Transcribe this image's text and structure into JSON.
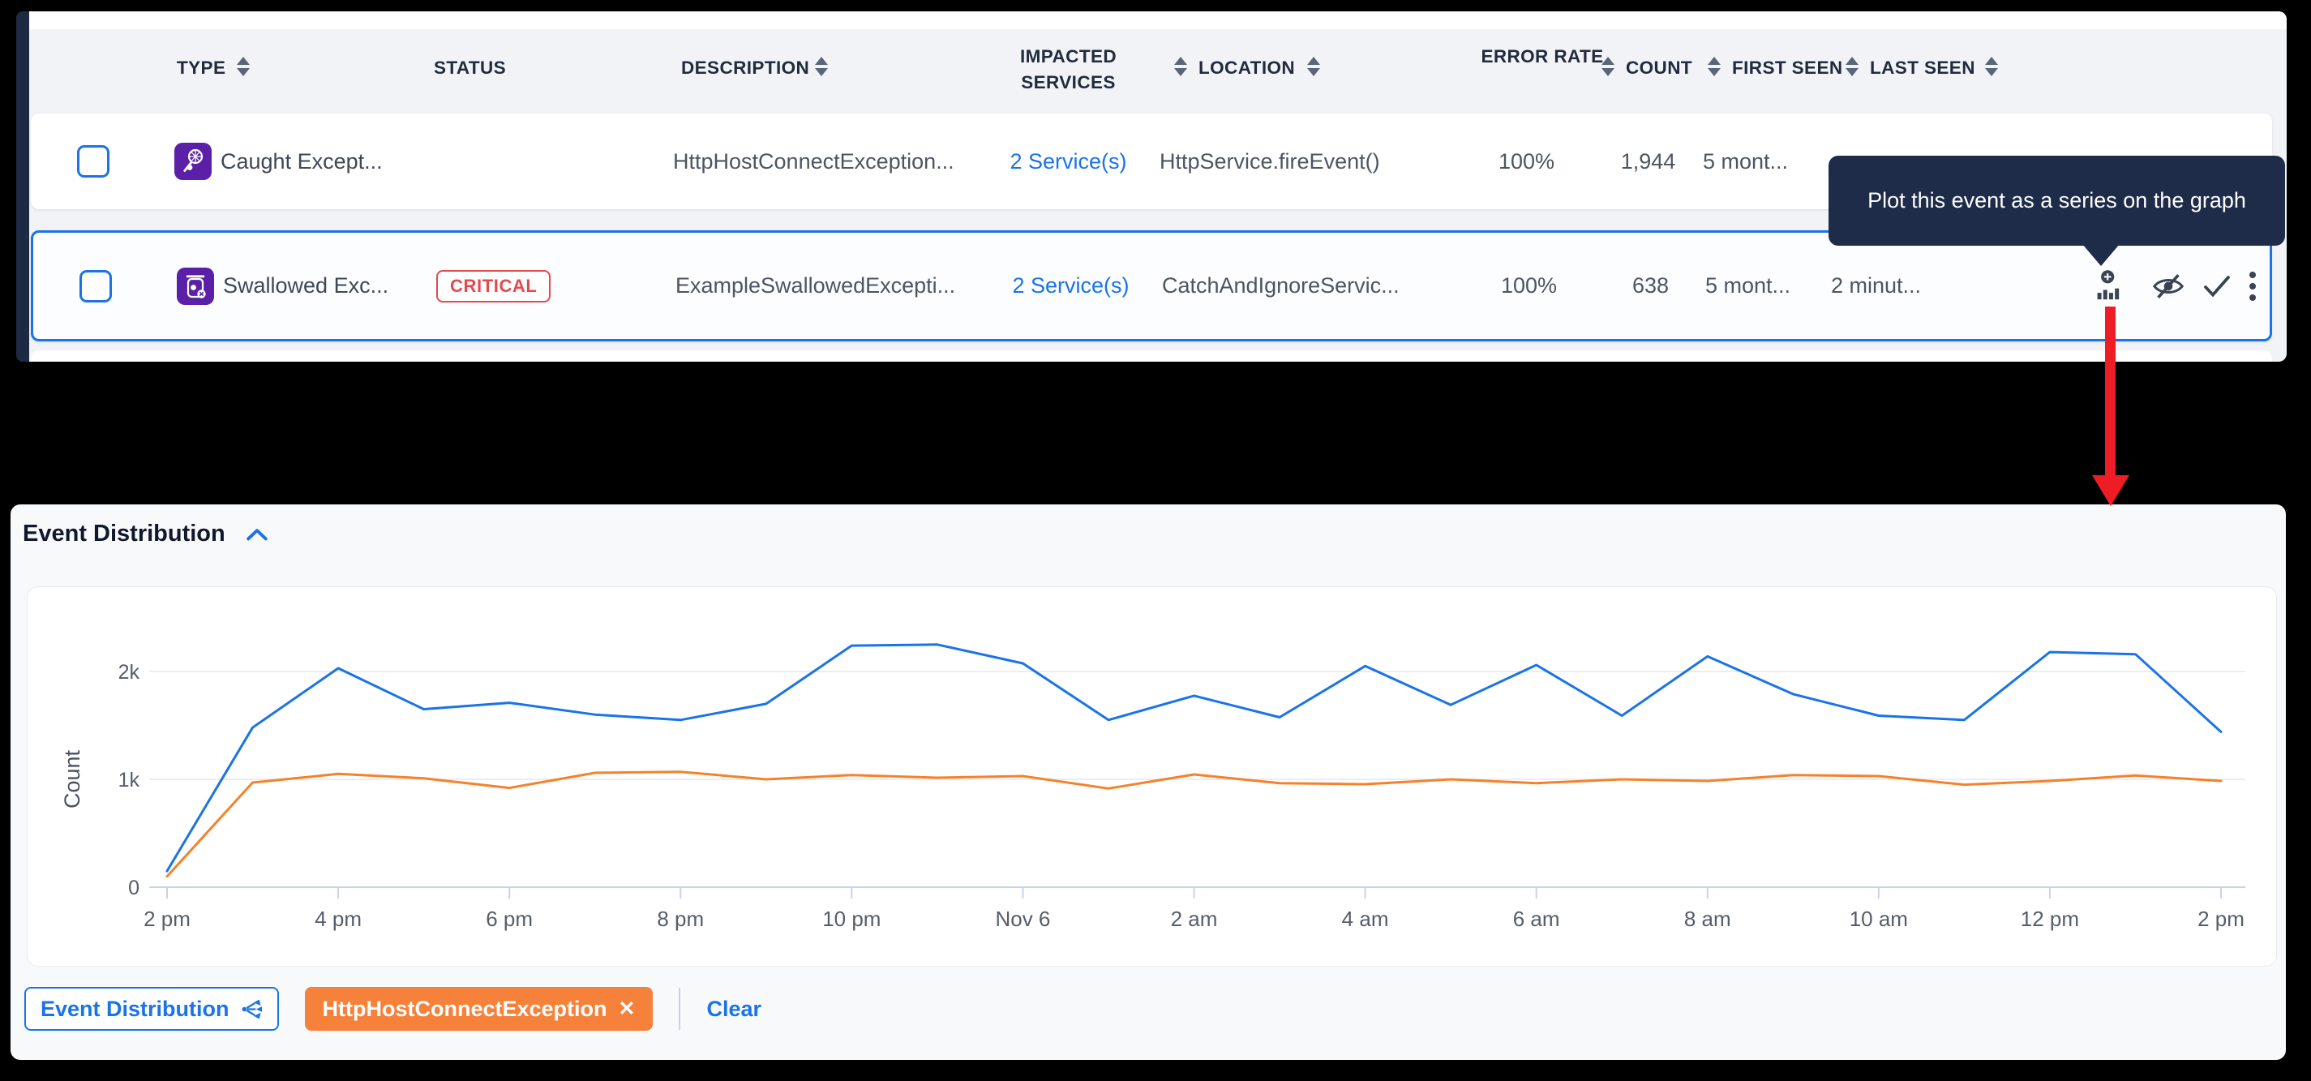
{
  "colors": {
    "accent_blue": "#1a73e8",
    "series_blue": "#1a73e8",
    "series_orange": "#f5822b",
    "critical_red": "#e5484d",
    "tooltip_bg": "#1e2c49",
    "type_icon_purple": "#5b1fa8",
    "arrow_red": "#ee1c25"
  },
  "table": {
    "columns": [
      {
        "label": "TYPE"
      },
      {
        "label": "STATUS"
      },
      {
        "label": "DESCRIPTION"
      },
      {
        "label": "IMPACTED SERVICES"
      },
      {
        "label": "LOCATION"
      },
      {
        "label": "ERROR RATE"
      },
      {
        "label": "COUNT"
      },
      {
        "label": "FIRST SEEN"
      },
      {
        "label": "LAST SEEN"
      }
    ],
    "rows": [
      {
        "type_label": "Caught Except...",
        "description": "HttpHostConnectException...",
        "impacted_services": "2 Service(s)",
        "location": "HttpService.fireEvent()",
        "error_rate": "100%",
        "count": "1,944",
        "first_seen": "5 mont..."
      },
      {
        "type_label": "Swallowed Exc...",
        "status_badge": "CRITICAL",
        "description": "ExampleSwallowedExcepti...",
        "impacted_services": "2 Service(s)",
        "location": "CatchAndIgnoreServic...",
        "error_rate": "100%",
        "count": "638",
        "first_seen": "5 mont...",
        "last_seen": "2 minut..."
      }
    ]
  },
  "tooltip": {
    "text": "Plot this event as a series on the graph"
  },
  "chart_panel": {
    "title": "Event Distribution"
  },
  "chips": {
    "series_toggle_label": "Event Distribution",
    "filter_chip_label": "HttpHostConnectException",
    "filter_chip_close": "✕",
    "clear_label": "Clear"
  },
  "chart_data": {
    "type": "line",
    "title": "Event Distribution",
    "xlabel": "",
    "ylabel": "Count",
    "ylim": [
      0,
      2500
    ],
    "grid": "horizontal",
    "legend_position": "chips-below-chart",
    "x_points": [
      "2 pm",
      "3 pm",
      "4 pm",
      "5 pm",
      "6 pm",
      "7 pm",
      "8 pm",
      "9 pm",
      "10 pm",
      "11 pm",
      "Nov 6",
      "1 am",
      "2 am",
      "3 am",
      "4 am",
      "5 am",
      "6 am",
      "7 am",
      "8 am",
      "9 am",
      "10 am",
      "11 am",
      "12 pm",
      "1 pm",
      "2 pm"
    ],
    "x_tick_labels": [
      "2 pm",
      "4 pm",
      "6 pm",
      "8 pm",
      "10 pm",
      "Nov 6",
      "2 am",
      "4 am",
      "6 am",
      "8 am",
      "10 am",
      "12 pm",
      "2 pm"
    ],
    "y_ticks": [
      {
        "value": 0,
        "label": "0"
      },
      {
        "value": 1000,
        "label": "1k"
      },
      {
        "value": 2000,
        "label": "2k"
      }
    ],
    "series": [
      {
        "name": "Event Distribution",
        "color": "#1a73e8",
        "values": [
          150,
          1480,
          2030,
          1650,
          1710,
          1600,
          1550,
          1700,
          2240,
          2250,
          2075,
          1550,
          1775,
          1575,
          2050,
          1690,
          2060,
          1590,
          2140,
          1790,
          1590,
          1550,
          2180,
          2160,
          1440
        ]
      },
      {
        "name": "HttpHostConnectException",
        "color": "#f5822b",
        "values": [
          100,
          970,
          1050,
          1010,
          920,
          1060,
          1070,
          1000,
          1040,
          1015,
          1030,
          915,
          1045,
          965,
          955,
          1000,
          965,
          1000,
          985,
          1040,
          1030,
          950,
          985,
          1035,
          985
        ]
      }
    ]
  }
}
